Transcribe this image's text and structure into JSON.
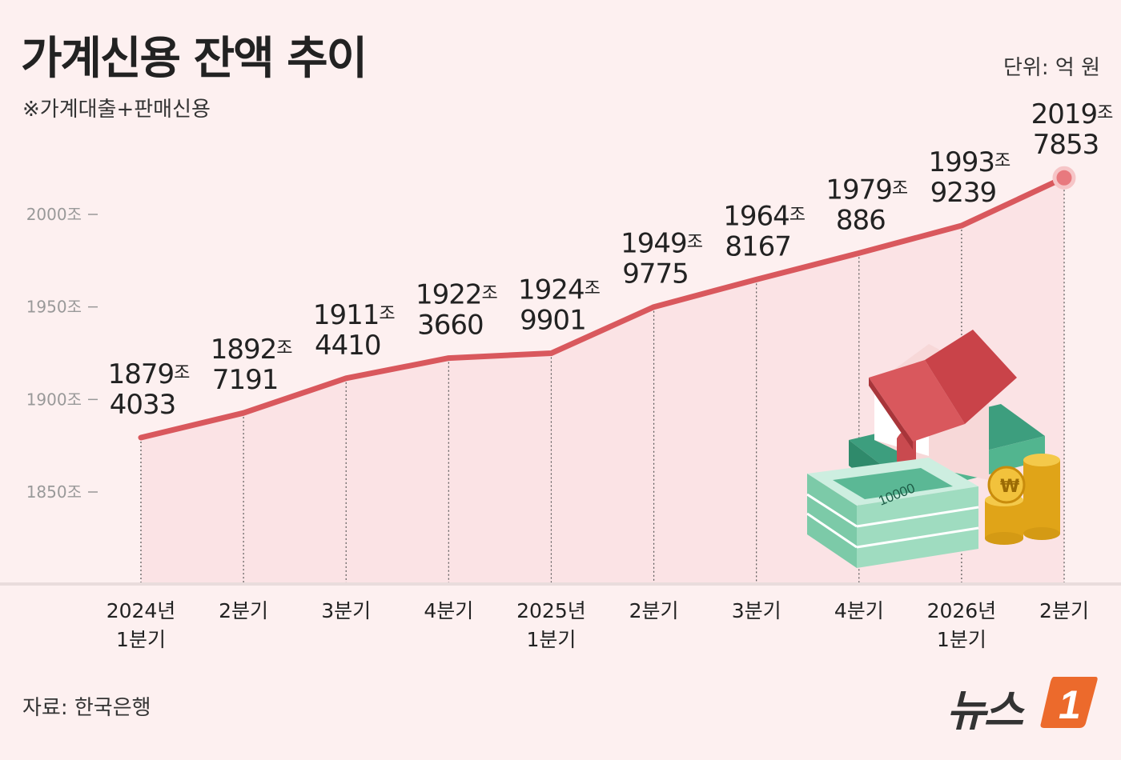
{
  "title": "가계신용 잔액 추이",
  "subtitle": "※가계대출+판매신용",
  "unit_label": "단위: 억 원",
  "source": "자료: 한국은행",
  "logo": {
    "text": "뉴스",
    "mark": "1"
  },
  "illustration": {
    "banknote_label": "10000",
    "coin_symbol": "₩"
  },
  "colors": {
    "background": "#fdf0f0",
    "line": "#d9585d",
    "area": "#fbe3e5",
    "text": "#222222",
    "tick": "#999999"
  },
  "chart_data": {
    "type": "line",
    "title": "가계신용 잔액 추이",
    "subtitle": "※가계대출+판매신용",
    "unit": "단위: 억 원",
    "categories": [
      [
        "2024년",
        "1분기"
      ],
      [
        "2분기"
      ],
      [
        "3분기"
      ],
      [
        "4분기"
      ],
      [
        "2025년",
        "1분기"
      ],
      [
        "2분기"
      ],
      [
        "3분기"
      ],
      [
        "4분기"
      ],
      [
        "2026년",
        "1분기"
      ],
      [
        "2분기"
      ]
    ],
    "values": [
      18794033,
      18927191,
      19114410,
      19223660,
      19249901,
      19499775,
      19648167,
      19790886,
      19939239,
      20197853
    ],
    "data_labels": [
      [
        "1879조",
        "4033"
      ],
      [
        "1892조",
        "7191"
      ],
      [
        "1911조",
        "4410"
      ],
      [
        "1922조",
        "3660"
      ],
      [
        "1924조",
        "9901"
      ],
      [
        "1949조",
        "9775"
      ],
      [
        "1964조",
        "8167"
      ],
      [
        "1979조",
        "886"
      ],
      [
        "1993조",
        "9239"
      ],
      [
        "2019조",
        "7853"
      ]
    ],
    "y_ticks": [
      18500000,
      19000000,
      19500000,
      20000000
    ],
    "y_tick_labels": [
      "1850조",
      "1900조",
      "1950조",
      "2000조"
    ],
    "ylim": [
      18300000,
      20330000
    ],
    "grid": false,
    "legend": "none"
  }
}
